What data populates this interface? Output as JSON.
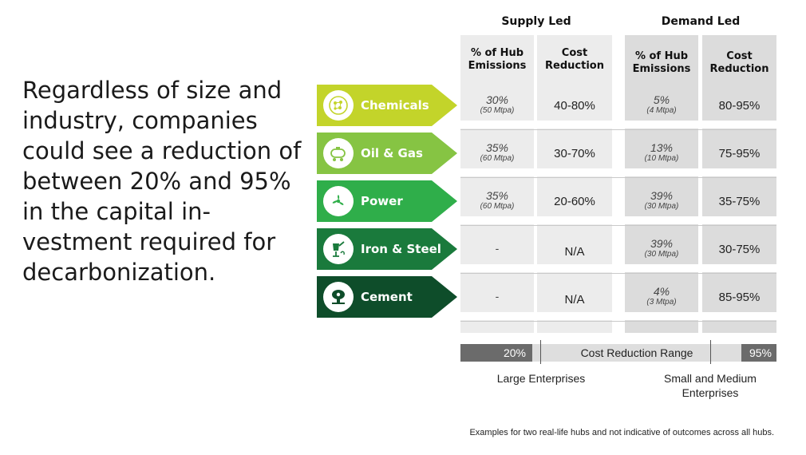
{
  "headline": "Regardless of size and industry, companies could see a reduction of between 20% and 95% in the capital in-vestment required for decarbonization.",
  "chart_data": {
    "type": "table",
    "groups": [
      "Supply Led",
      "Demand Led"
    ],
    "column_headers": [
      "% of Hub Emissions",
      "Cost Reduction",
      "% of Hub Emissions",
      "Cost Reduction"
    ],
    "rows": [
      {
        "industry": "Chemicals",
        "icon": "molecule-icon",
        "color": "#c3d42a",
        "supply_pct": "30%",
        "supply_mtpa": "(50 Mtpa)",
        "supply_cost": "40-80%",
        "demand_pct": "5%",
        "demand_mtpa": "(4 Mtpa)",
        "demand_cost": "80-95%"
      },
      {
        "industry": "Oil & Gas",
        "icon": "oil-tank-icon",
        "color": "#86c443",
        "supply_pct": "35%",
        "supply_mtpa": "(60 Mtpa)",
        "supply_cost": "30-70%",
        "demand_pct": "13%",
        "demand_mtpa": "(10 Mtpa)",
        "demand_cost": "75-95%"
      },
      {
        "industry": "Power",
        "icon": "turbine-icon",
        "color": "#2fae4a",
        "supply_pct": "35%",
        "supply_mtpa": "(60 Mtpa)",
        "supply_cost": "20-60%",
        "demand_pct": "39%",
        "demand_mtpa": "(30 Mtpa)",
        "demand_cost": "35-75%"
      },
      {
        "industry": "Iron & Steel",
        "icon": "ladle-icon",
        "color": "#1a7a3c",
        "supply_pct": "-",
        "supply_mtpa": "",
        "supply_cost": "N/A",
        "demand_pct": "39%",
        "demand_mtpa": "(30 Mtpa)",
        "demand_cost": "30-75%"
      },
      {
        "industry": "Cement",
        "icon": "cement-mixer-icon",
        "color": "#0e4d2a",
        "supply_pct": "-",
        "supply_mtpa": "",
        "supply_cost": "N/A",
        "demand_pct": "4%",
        "demand_mtpa": "(3 Mtpa)",
        "demand_cost": "85-95%"
      }
    ],
    "range_bar": {
      "low": "20%",
      "label": "Cost Reduction Range",
      "high": "95%"
    },
    "range_ends": {
      "left": "Large Enterprises",
      "right": "Small and Medium Enterprises"
    }
  },
  "footnote": "Examples for two real-life hubs and not indicative of outcomes across all hubs."
}
